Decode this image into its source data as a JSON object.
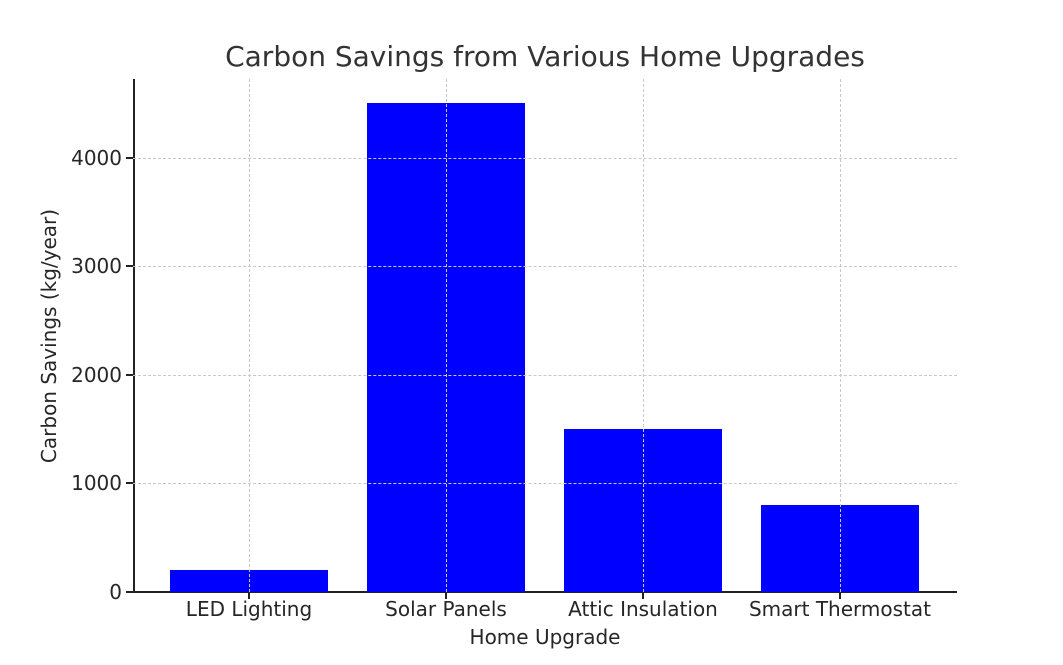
{
  "chart_data": {
    "type": "bar",
    "title": "Carbon Savings from Various Home Upgrades",
    "xlabel": "Home Upgrade",
    "ylabel": "Carbon Savings (kg/year)",
    "categories": [
      "LED Lighting",
      "Solar Panels",
      "Attic Insulation",
      "Smart Thermostat"
    ],
    "values": [
      200,
      4500,
      1500,
      800
    ],
    "ylim": [
      0,
      4725
    ],
    "yticks": [
      "0",
      "1000",
      "2000",
      "3000",
      "4000"
    ],
    "grid": true,
    "bar_color": "#0000ff",
    "legend": null
  }
}
